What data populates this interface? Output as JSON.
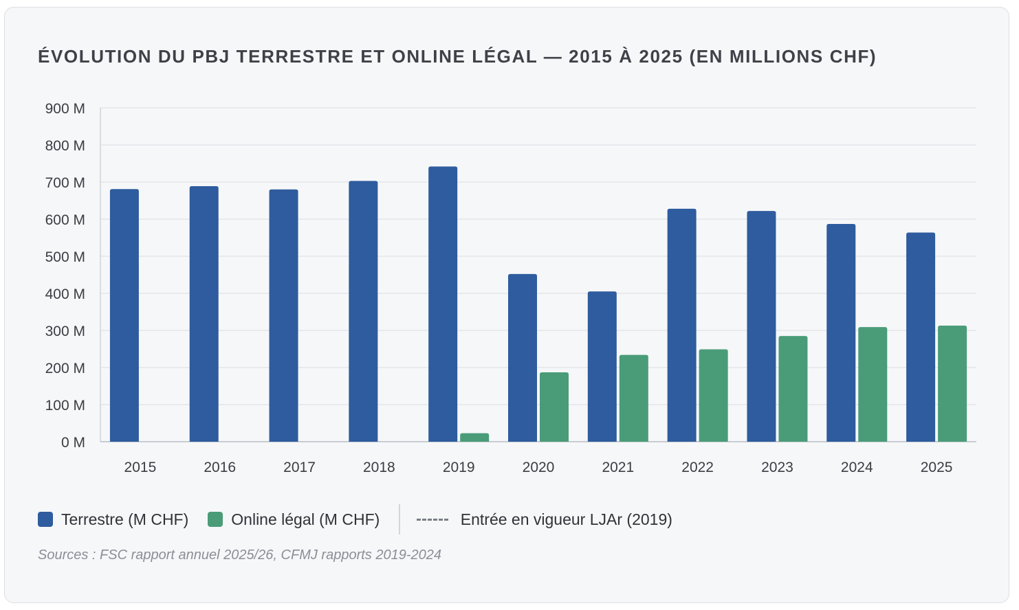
{
  "chart_data": {
    "type": "bar",
    "title": "ÉVOLUTION DU PBJ TERRESTRE ET ONLINE LÉGAL — 2015 À 2025 (EN MILLIONS CHF)",
    "categories": [
      "2015",
      "2016",
      "2017",
      "2018",
      "2019",
      "2020",
      "2021",
      "2022",
      "2023",
      "2024",
      "2025"
    ],
    "series": [
      {
        "name": "Terrestre (M CHF)",
        "color": "#2e5c9e",
        "values": [
          681,
          689,
          680,
          703,
          742,
          452,
          405,
          628,
          622,
          587,
          564
        ]
      },
      {
        "name": "Online légal (M CHF)",
        "color": "#4a9c78",
        "values": [
          null,
          null,
          null,
          null,
          23,
          187,
          234,
          249,
          285,
          309,
          313
        ]
      }
    ],
    "ylim": [
      0,
      900
    ],
    "yticks": [
      0,
      100,
      200,
      300,
      400,
      500,
      600,
      700,
      800,
      900
    ],
    "ytick_suffix": " M",
    "xlabel": "",
    "ylabel": "",
    "grid": true,
    "legend_position": "bottom-left",
    "annotation": {
      "label": "Entrée en vigueur LJAr (2019)",
      "style": "dashed",
      "color": "#7a7e85"
    },
    "source": "Sources : FSC rapport annuel 2025/26, CFMJ rapports 2019-2024"
  }
}
